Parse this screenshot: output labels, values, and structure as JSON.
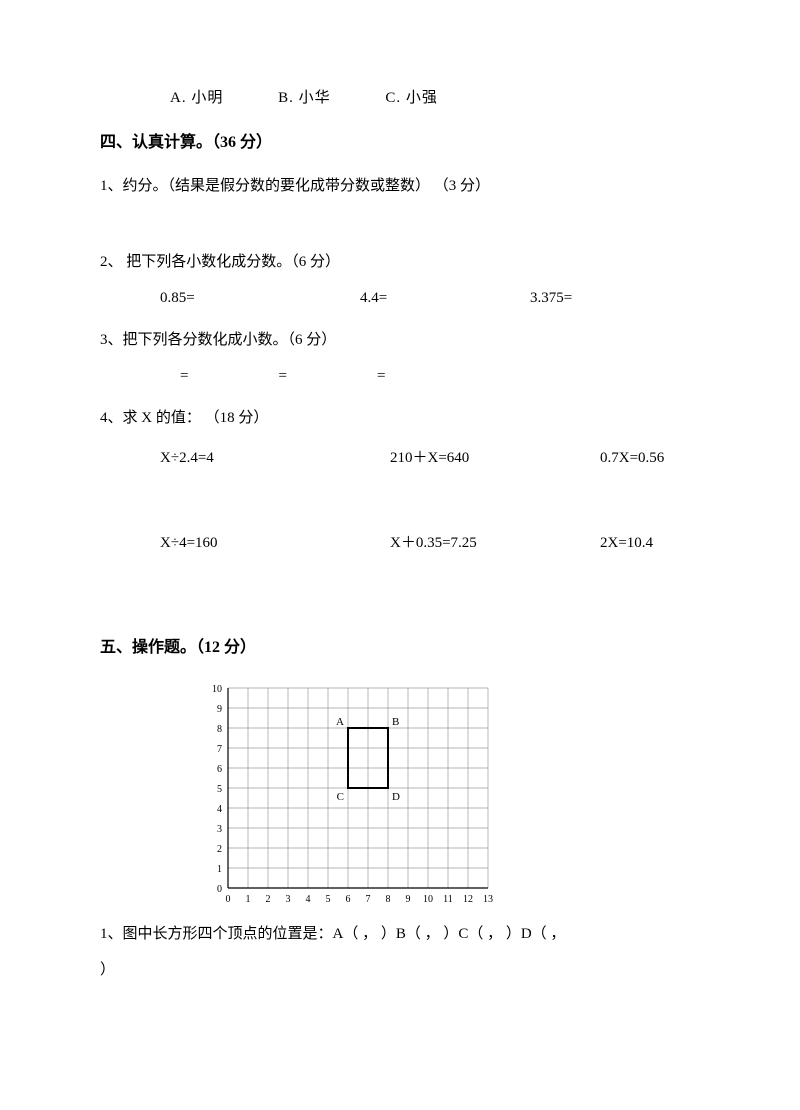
{
  "prev_question": {
    "options": {
      "a": "A. 小明",
      "b": "B. 小华",
      "c": "C. 小强"
    }
  },
  "section4": {
    "heading": "四、认真计算。（36 分）",
    "q1": "1、约分。（结果是假分数的要化成带分数或整数）  （3 分）",
    "q2": {
      "text": "2、 把下列各小数化成分数。（6 分）",
      "items": {
        "a": "0.85=",
        "b": "4.4=",
        "c": "3.375="
      }
    },
    "q3": {
      "text": "3、把下列各分数化成小数。（6 分）",
      "items": {
        "a": "=",
        "b": "=",
        "c": "="
      }
    },
    "q4": {
      "text": "4、求 X 的值： （18 分）",
      "row1": {
        "a": "X÷2.4=4",
        "b": "210＋X=640",
        "c": "0.7X=0.56"
      },
      "row2": {
        "a": "X÷4=160",
        "b": "X＋0.35=7.25",
        "c": "2X=10.4"
      }
    }
  },
  "section5": {
    "heading": "五、操作题。（12 分）",
    "chart": {
      "x_max": 13,
      "y_max": 10,
      "cell_size": 20,
      "grid_color": "#9a9a9a",
      "axis_color": "#000000",
      "rect_color": "#000000",
      "rect_stroke_width": 2,
      "background": "#ffffff",
      "tick_fontsize": 10,
      "label_fontsize": 11,
      "points": {
        "A": {
          "x": 6,
          "y": 8,
          "label": "A"
        },
        "B": {
          "x": 8,
          "y": 8,
          "label": "B"
        },
        "C": {
          "x": 6,
          "y": 5,
          "label": "C"
        },
        "D": {
          "x": 8,
          "y": 5,
          "label": "D"
        }
      }
    },
    "q1": "1、图中长方形四个顶点的位置是：A（   ，   ）B（   ，   ）C（   ，   ）D（   ，",
    "q1_cont": "）"
  }
}
